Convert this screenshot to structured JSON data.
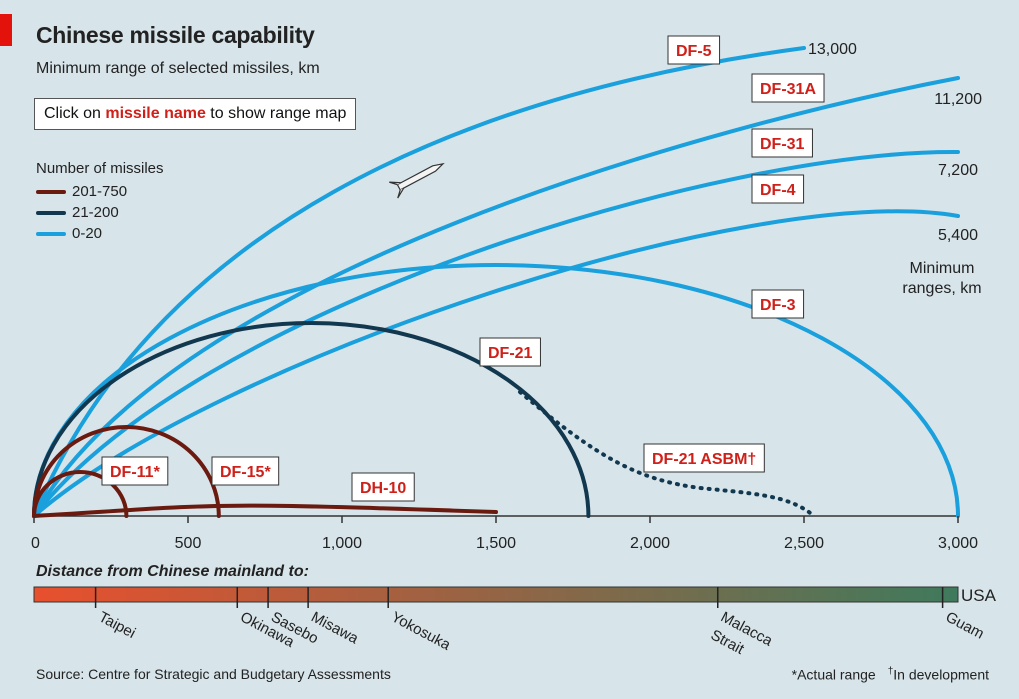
{
  "header": {
    "title": "Chinese missile capability",
    "subtitle": "Minimum range of selected missiles, km",
    "click_prefix": "Click on ",
    "click_highlight": "missile name",
    "click_suffix": " to show range map"
  },
  "legend": {
    "title": "Number of missiles",
    "items": [
      {
        "label": "201-750",
        "color": "#6b1a0f"
      },
      {
        "label": "21-200",
        "color": "#12384f"
      },
      {
        "label": "0-20",
        "color": "#1aa0dc"
      }
    ]
  },
  "chart_data": {
    "type": "line",
    "title": "Chinese missile capability",
    "subtitle": "Minimum range of selected missiles, km",
    "xlabel": "Distance from Chinese mainland to:",
    "xlim": [
      0,
      3000
    ],
    "x_ticks": [
      0,
      500,
      1000,
      1500,
      2000,
      2500,
      3000
    ],
    "x_tick_labels": [
      "0",
      "500",
      "1,000",
      "1,500",
      "2,000",
      "2,500",
      "3,000"
    ],
    "range_axis_label": "Minimum ranges, km",
    "series": [
      {
        "name": "DF-5",
        "group": "0-20",
        "range_km": 13000,
        "end_label": "13,000",
        "arc_end_x": 2500
      },
      {
        "name": "DF-31A",
        "group": "0-20",
        "range_km": 11200,
        "end_label": "11,200",
        "arc_end_x": 3000
      },
      {
        "name": "DF-31",
        "group": "0-20",
        "range_km": 7200,
        "end_label": "7,200",
        "arc_end_x": 3000
      },
      {
        "name": "DF-4",
        "group": "0-20",
        "range_km": 5400,
        "end_label": "5,400",
        "arc_end_x": 3000
      },
      {
        "name": "DF-3",
        "group": "0-20",
        "range_km": 3000
      },
      {
        "name": "DF-21",
        "group": "21-200",
        "range_km": 1800
      },
      {
        "name": "DF-21 ASBM†",
        "group": "21-200",
        "range_km": 2500,
        "style": "dotted"
      },
      {
        "name": "DF-15*",
        "group": "201-750",
        "range_km": 600
      },
      {
        "name": "DF-11*",
        "group": "201-750",
        "range_km": 300
      },
      {
        "name": "DH-10",
        "group": "201-750",
        "range_km": 1500
      }
    ],
    "destinations": [
      {
        "name": "Taipei",
        "distance_km": 200
      },
      {
        "name": "Okinawa",
        "distance_km": 660
      },
      {
        "name": "Sasebo",
        "distance_km": 760
      },
      {
        "name": "Misawa",
        "distance_km": 890
      },
      {
        "name": "Yokosuka",
        "distance_km": 1150
      },
      {
        "name": "Malacca Strait",
        "distance_km": 2220
      },
      {
        "name": "Guam",
        "distance_km": 2950
      }
    ],
    "bar_end_label": "USA",
    "bar_colors": [
      "#e8502e",
      "#3f7a5c"
    ]
  },
  "footer": {
    "source": "Source: Centre for Strategic and Budgetary Assessments",
    "note_actual": "*Actual range",
    "note_dev_mark": "†",
    "note_dev": "In development"
  }
}
